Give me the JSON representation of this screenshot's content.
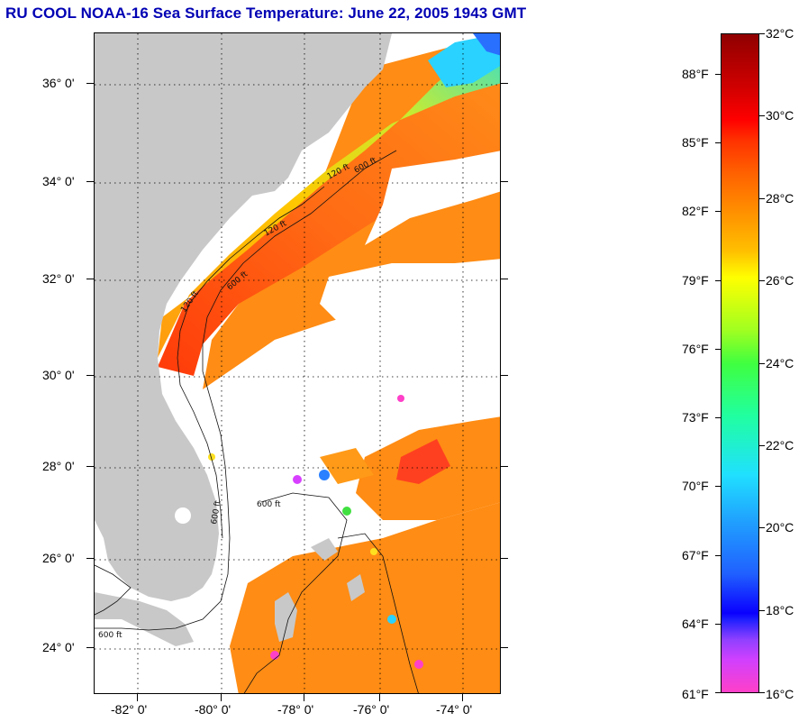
{
  "title": "RU COOL  NOAA-16  Sea Surface Temperature:  June 22, 2005 1943 GMT",
  "map": {
    "lat_labels": [
      "36° 0'",
      "34° 0'",
      "32° 0'",
      "30° 0'",
      "28° 0'",
      "26° 0'",
      "24° 0'"
    ],
    "lon_labels": [
      "-82° 0'",
      "-80° 0'",
      "-78° 0'",
      "-76° 0'",
      "-74° 0'"
    ],
    "contour_labels": {
      "c120_a": "120 ft",
      "c120_b": "120 ft",
      "c120_c": "120 ft",
      "c600_a": "600 ft",
      "c600_b": "600 ft",
      "c600_c": "600 ft",
      "c600_d": "600 ft",
      "c600_e": "600 ft"
    },
    "colors": {
      "land": "#c8c8c8",
      "cloud": "#ffffff",
      "nearshore": "#d8f020",
      "shelf": "#b8ec38",
      "gulfstream": "#ff5a14",
      "offshore": "#ff8a10",
      "cold_slope": "#2ad2ff",
      "cold_north": "#2a70ff"
    }
  },
  "colorbar": {
    "celsius": [
      "32°C",
      "30°C",
      "28°C",
      "26°C",
      "24°C",
      "22°C",
      "20°C",
      "18°C",
      "16°C"
    ],
    "fahrenheit": [
      "88°F",
      "85°F",
      "82°F",
      "79°F",
      "76°F",
      "73°F",
      "70°F",
      "67°F",
      "64°F",
      "61°F"
    ],
    "range_c": [
      16,
      32
    ]
  }
}
